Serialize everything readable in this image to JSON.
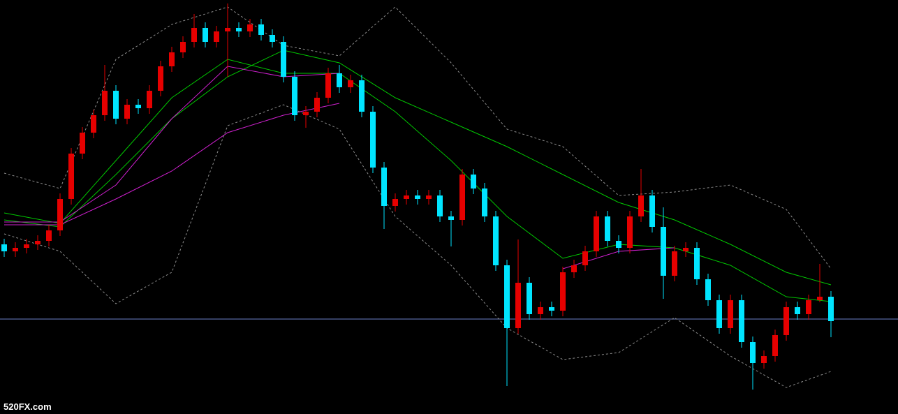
{
  "chart_data": {
    "type": "candlestick",
    "watermark": "520FX.com",
    "ylim": [
      0,
      593
    ],
    "up_color": "#e60000",
    "down_color": "#00e5ff",
    "candles": {
      "open": [
        243,
        233,
        238,
        243,
        248,
        263,
        308,
        373,
        403,
        428,
        463,
        423,
        443,
        438,
        463,
        498,
        518,
        533,
        553,
        533,
        548,
        553,
        548,
        558,
        543,
        533,
        483,
        428,
        433,
        453,
        488,
        468,
        478,
        433,
        353,
        298,
        308,
        313,
        308,
        313,
        283,
        278,
        343,
        323,
        283,
        213,
        123,
        188,
        143,
        153,
        148,
        203,
        213,
        233,
        283,
        248,
        238,
        283,
        313,
        268,
        198,
        233,
        238,
        193,
        163,
        123,
        163,
        103,
        73,
        83,
        113,
        153,
        143,
        163,
        168
      ],
      "high": [
        251,
        246,
        251,
        256,
        271,
        316,
        381,
        411,
        436,
        500,
        471,
        451,
        451,
        471,
        506,
        526,
        541,
        573,
        561,
        556,
        588,
        561,
        566,
        566,
        551,
        541,
        491,
        441,
        461,
        496,
        500,
        486,
        486,
        441,
        361,
        316,
        321,
        321,
        321,
        321,
        291,
        351,
        351,
        331,
        291,
        221,
        250,
        196,
        161,
        161,
        211,
        221,
        241,
        291,
        291,
        256,
        291,
        351,
        321,
        296,
        241,
        246,
        246,
        201,
        171,
        171,
        171,
        111,
        91,
        121,
        161,
        161,
        171,
        215,
        176
      ],
      "low": [
        225,
        225,
        230,
        235,
        240,
        255,
        300,
        365,
        395,
        420,
        415,
        415,
        430,
        430,
        455,
        490,
        510,
        525,
        525,
        525,
        483,
        540,
        540,
        535,
        525,
        475,
        420,
        410,
        425,
        445,
        460,
        460,
        425,
        345,
        265,
        290,
        300,
        300,
        300,
        275,
        240,
        270,
        315,
        275,
        205,
        40,
        115,
        135,
        135,
        140,
        140,
        195,
        205,
        225,
        240,
        230,
        230,
        275,
        260,
        165,
        190,
        225,
        185,
        155,
        115,
        115,
        95,
        35,
        65,
        75,
        105,
        135,
        135,
        160,
        110
      ],
      "close": [
        233,
        238,
        243,
        248,
        263,
        308,
        373,
        403,
        428,
        463,
        423,
        443,
        438,
        463,
        498,
        518,
        533,
        553,
        533,
        548,
        553,
        548,
        558,
        543,
        533,
        483,
        428,
        433,
        453,
        488,
        468,
        478,
        433,
        353,
        298,
        308,
        313,
        308,
        313,
        283,
        278,
        343,
        323,
        283,
        213,
        123,
        188,
        143,
        153,
        148,
        203,
        213,
        233,
        283,
        248,
        238,
        283,
        313,
        268,
        198,
        233,
        238,
        193,
        163,
        123,
        163,
        103,
        73,
        83,
        113,
        153,
        143,
        163,
        168,
        133
      ]
    },
    "line_x": [
      0,
      5,
      10,
      15,
      20,
      25,
      30,
      35,
      40,
      45,
      50,
      55,
      60,
      65,
      70,
      74
    ],
    "series": [
      {
        "color": "#00c800",
        "dashed": false,
        "values": [
          278,
          268,
          343,
          423,
          483,
          521,
          503,
          453,
          418,
          383,
          343,
          303,
          278,
          243,
          203,
          185
        ]
      },
      {
        "color": "#00c800",
        "dashed": false,
        "values": [
          288,
          273,
          363,
          453,
          508,
          488,
          488,
          433,
          363,
          283,
          223,
          243,
          238,
          213,
          168,
          161
        ]
      },
      {
        "color": "#d020d0",
        "dashed": false,
        "values": [
          275,
          275,
          328,
          423,
          498,
          483,
          488,
          null,
          null,
          null,
          208,
          233,
          238,
          null,
          null,
          null
        ]
      },
      {
        "color": "#d020d0",
        "dashed": false,
        "values": [
          271,
          271,
          308,
          348,
          403,
          428,
          445,
          null,
          null,
          null,
          null,
          null,
          null,
          null,
          null,
          null
        ]
      },
      {
        "color": "#8c8c8c",
        "dashed": true,
        "values": [
          345,
          323,
          508,
          558,
          583,
          528,
          513,
          583,
          503,
          408,
          383,
          313,
          318,
          328,
          293,
          208
        ]
      },
      {
        "color": "#8c8c8c",
        "dashed": true,
        "values": [
          258,
          233,
          158,
          203,
          413,
          443,
          408,
          283,
          213,
          123,
          78,
          88,
          138,
          83,
          38,
          61
        ]
      }
    ],
    "hline": {
      "value": 136,
      "color": "#6a80c8"
    }
  }
}
